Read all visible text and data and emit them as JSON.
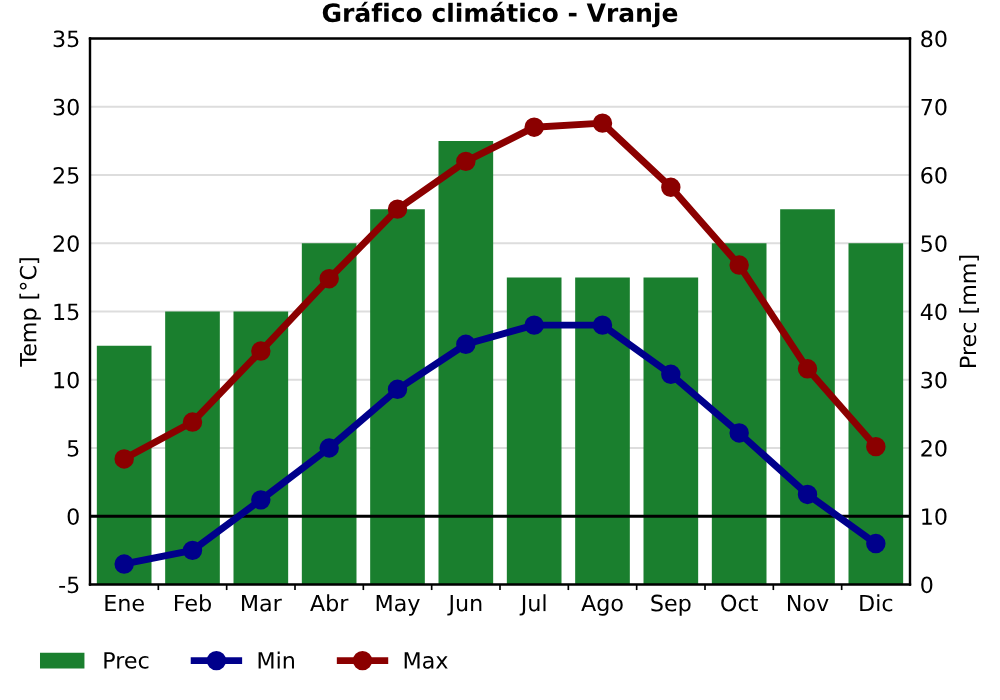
{
  "chart_data": {
    "type": "bar",
    "title": "Gráfico climático - Vranje",
    "ylabel": "Temp [°C]",
    "y2label": "Prec [mm]",
    "categories": [
      "Ene",
      "Feb",
      "Mar",
      "Abr",
      "May",
      "Jun",
      "Jul",
      "Ago",
      "Sep",
      "Oct",
      "Nov",
      "Dic"
    ],
    "series": [
      {
        "name": "Prec",
        "axis": "y2",
        "color": "#1a7f2e",
        "values": [
          35,
          40,
          40,
          50,
          55,
          65,
          45,
          45,
          45,
          50,
          55,
          50
        ]
      },
      {
        "name": "Min",
        "type": "line",
        "axis": "y",
        "color": "#00008b",
        "values": [
          -3.5,
          -2.5,
          1.2,
          5.0,
          9.3,
          12.6,
          14.0,
          14.0,
          10.4,
          6.1,
          1.6,
          -2.0
        ]
      },
      {
        "name": "Max",
        "type": "line",
        "axis": "y",
        "color": "#8b0000",
        "values": [
          4.2,
          6.9,
          12.1,
          17.4,
          22.5,
          26.0,
          28.5,
          28.8,
          24.1,
          18.4,
          10.8,
          5.1
        ]
      }
    ],
    "ylim": [
      -5,
      35
    ],
    "yticks": [
      -5,
      0,
      5,
      10,
      15,
      20,
      25,
      30,
      35
    ],
    "y2lim": [
      0,
      80
    ],
    "y2ticks": [
      0,
      10,
      20,
      30,
      40,
      50,
      60,
      70,
      80
    ],
    "ref_lines": [
      {
        "axis": "y",
        "value": 0,
        "color": "#000000"
      }
    ],
    "grid": true,
    "legend": "bottom",
    "marker": "circle",
    "line_style": "solid"
  }
}
